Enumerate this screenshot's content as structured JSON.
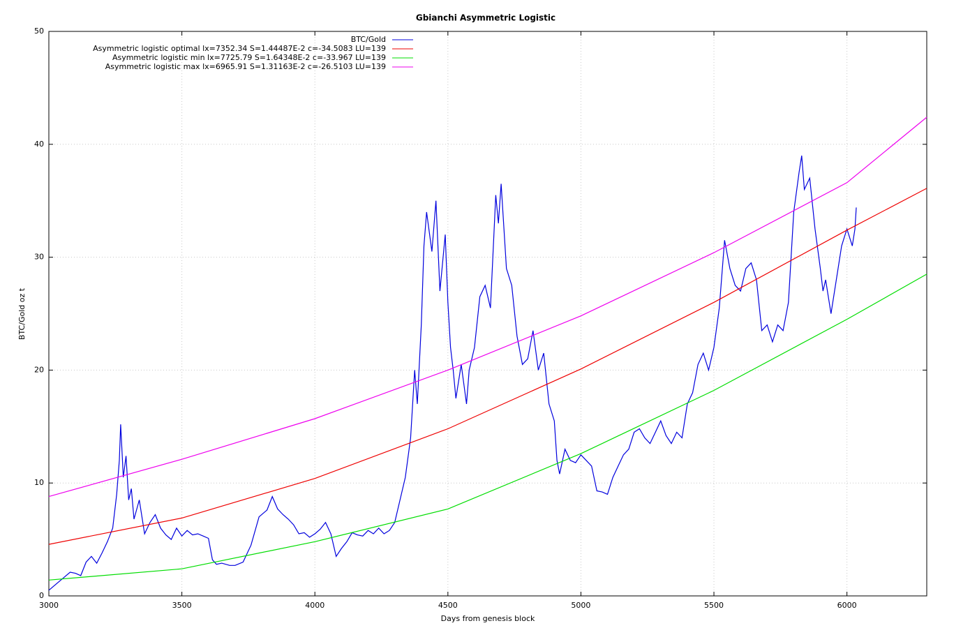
{
  "chart_data": {
    "type": "line",
    "title": "Gbianchi Asymmetric Logistic",
    "x_label": "Days from genesis block",
    "y_label": "BTC/Gold oz t",
    "xlim": [
      3000,
      6300
    ],
    "xticks": [
      3000,
      3500,
      4000,
      4500,
      5000,
      5500,
      6000
    ],
    "ylim": [
      0,
      50
    ],
    "yticks": [
      0,
      10,
      20,
      30,
      40,
      50
    ],
    "grid": true,
    "legend": "top-left",
    "series": [
      {
        "name": "BTC/Gold",
        "color": "#0000dd",
        "x": [
          3000,
          3020,
          3050,
          3080,
          3100,
          3120,
          3140,
          3160,
          3180,
          3200,
          3220,
          3240,
          3255,
          3265,
          3270,
          3280,
          3290,
          3300,
          3310,
          3320,
          3340,
          3360,
          3380,
          3400,
          3420,
          3440,
          3460,
          3480,
          3500,
          3520,
          3540,
          3560,
          3580,
          3600,
          3615,
          3630,
          3650,
          3680,
          3700,
          3730,
          3760,
          3790,
          3820,
          3840,
          3860,
          3880,
          3900,
          3920,
          3940,
          3960,
          3980,
          4000,
          4020,
          4040,
          4060,
          4080,
          4100,
          4120,
          4140,
          4160,
          4180,
          4200,
          4220,
          4240,
          4260,
          4280,
          4300,
          4320,
          4340,
          4360,
          4375,
          4385,
          4400,
          4410,
          4420,
          4440,
          4455,
          4470,
          4490,
          4500,
          4510,
          4520,
          4530,
          4550,
          4570,
          4580,
          4600,
          4620,
          4640,
          4660,
          4680,
          4690,
          4700,
          4720,
          4740,
          4760,
          4780,
          4800,
          4820,
          4840,
          4860,
          4880,
          4900,
          4910,
          4920,
          4940,
          4960,
          4980,
          5000,
          5020,
          5040,
          5060,
          5080,
          5100,
          5120,
          5140,
          5160,
          5180,
          5200,
          5220,
          5240,
          5260,
          5280,
          5300,
          5320,
          5340,
          5360,
          5380,
          5400,
          5420,
          5440,
          5460,
          5480,
          5500,
          5520,
          5540,
          5560,
          5580,
          5600,
          5620,
          5640,
          5660,
          5680,
          5700,
          5720,
          5740,
          5760,
          5780,
          5800,
          5820,
          5830,
          5840,
          5860,
          5880,
          5900,
          5910,
          5920,
          5940,
          5960,
          5980,
          6000,
          6020,
          6030,
          6035
        ],
        "values": [
          0.5,
          0.9,
          1.5,
          2.1,
          2.0,
          1.8,
          3.0,
          3.5,
          2.9,
          3.8,
          4.8,
          6.0,
          9.0,
          12.0,
          15.2,
          10.5,
          12.4,
          8.5,
          9.5,
          6.8,
          8.5,
          5.5,
          6.5,
          7.2,
          6.0,
          5.4,
          5.0,
          6.0,
          5.3,
          5.8,
          5.4,
          5.5,
          5.3,
          5.1,
          3.2,
          2.8,
          2.9,
          2.7,
          2.7,
          3.0,
          4.5,
          7.0,
          7.6,
          8.8,
          7.7,
          7.2,
          6.8,
          6.3,
          5.5,
          5.6,
          5.2,
          5.5,
          5.9,
          6.5,
          5.5,
          3.5,
          4.2,
          4.8,
          5.6,
          5.4,
          5.3,
          5.8,
          5.5,
          6.0,
          5.5,
          5.8,
          6.5,
          8.5,
          10.5,
          14.0,
          20.0,
          17.0,
          24.0,
          31.0,
          34.0,
          30.5,
          35.0,
          27.0,
          32.0,
          26.0,
          22.0,
          20.0,
          17.5,
          20.5,
          17.0,
          20.0,
          22.0,
          26.5,
          27.5,
          25.5,
          35.5,
          33.0,
          36.5,
          29.0,
          27.5,
          23.0,
          20.5,
          21.0,
          23.5,
          20.0,
          21.5,
          17.0,
          15.5,
          12.0,
          10.8,
          13.0,
          12.0,
          11.8,
          12.5,
          12.0,
          11.5,
          9.3,
          9.2,
          9.0,
          10.5,
          11.5,
          12.5,
          13.0,
          14.5,
          14.8,
          14.0,
          13.5,
          14.5,
          15.5,
          14.2,
          13.5,
          14.5,
          14.0,
          17.0,
          18.0,
          20.5,
          21.5,
          20.0,
          22.0,
          25.5,
          31.5,
          29.0,
          27.5,
          27.0,
          29.0,
          29.5,
          28.0,
          23.5,
          24.0,
          22.5,
          24.0,
          23.5,
          26.0,
          34.0,
          37.5,
          39.0,
          36.0,
          37.0,
          32.5,
          29.0,
          27.0,
          28.0,
          25.0,
          28.0,
          31.0,
          32.5,
          31.0,
          32.5,
          34.4
        ]
      },
      {
        "name": "Asymmetric logistic optimal lx=7352.34 S=1.44487E-2 c=-34.5083 LU=139",
        "color": "#ee0000",
        "x": [
          3000,
          3500,
          4000,
          4500,
          5000,
          5500,
          6000,
          6300
        ],
        "values": [
          4.57,
          6.9,
          10.4,
          14.8,
          20.1,
          26.0,
          32.4,
          36.1
        ]
      },
      {
        "name": "Asymmetric logistic min lx=7725.79 S=1.64348E-2 c=-33.967 LU=139",
        "color": "#00dd00",
        "x": [
          3000,
          3500,
          4000,
          4500,
          5000,
          5500,
          6000,
          6300
        ],
        "values": [
          1.4,
          2.4,
          4.8,
          7.7,
          12.6,
          18.2,
          24.5,
          28.5
        ]
      },
      {
        "name": "Asymmetric logistic max lx=6965.91 S=1.31163E-2 c=-26.5103 LU=139",
        "color": "#ee00ee",
        "x": [
          3000,
          3500,
          4000,
          4500,
          5000,
          5500,
          6000,
          6300
        ],
        "values": [
          8.8,
          12.1,
          15.7,
          20.0,
          24.8,
          30.4,
          36.6,
          42.4
        ]
      }
    ]
  }
}
